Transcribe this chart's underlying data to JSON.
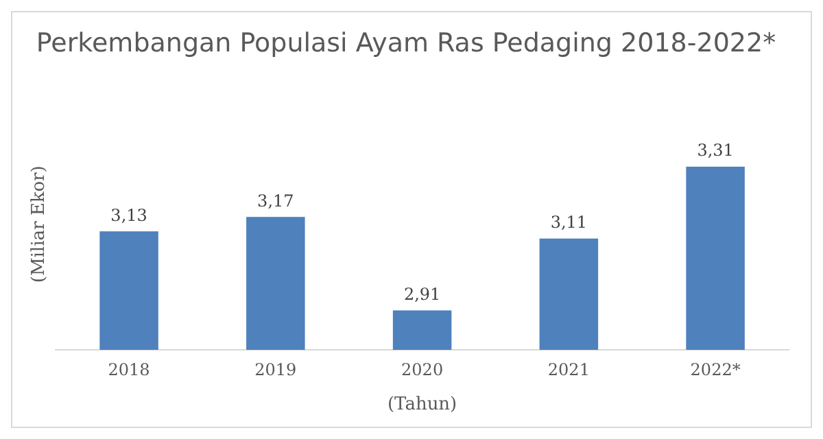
{
  "chart_data": {
    "type": "bar",
    "title": "Perkembangan Populasi Ayam Ras Pedaging 2018-2022*",
    "xlabel": "(Tahun)",
    "ylabel": "(Miliar Ekor)",
    "categories": [
      "2018",
      "2019",
      "2020",
      "2021",
      "2022*"
    ],
    "values": [
      3.13,
      3.17,
      2.91,
      3.11,
      3.31
    ],
    "value_labels": [
      "3,13",
      "3,17",
      "2,91",
      "3,11",
      "3,31"
    ],
    "color": "#4f81bd",
    "tick_labels": "x",
    "grid": false,
    "legend": false
  }
}
